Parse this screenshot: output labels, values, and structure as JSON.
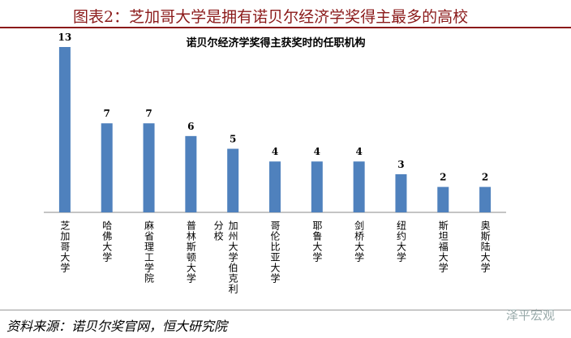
{
  "header": {
    "title": "图表2：芝加哥大学是拥有诺贝尔经济学奖得主最多的高校"
  },
  "chart_data": {
    "type": "bar",
    "title": "诺贝尔经济学奖得主获奖时的任职机构",
    "categories": [
      "芝加哥大学",
      "哈佛大学",
      "麻省理工学院",
      "普林斯顿大学",
      "加州大学伯克利分校",
      "哥伦比亚大学",
      "耶鲁大学",
      "剑桥大学",
      "纽约大学",
      "斯坦福大学",
      "奥斯陆大学"
    ],
    "values": [
      13,
      7,
      7,
      6,
      5,
      4,
      4,
      4,
      3,
      2,
      2
    ],
    "color": "#4f81bd"
  },
  "footer": {
    "source": "资料来源：诺贝尔奖官网，恒大研究院",
    "watermark": "泽平宏观"
  }
}
